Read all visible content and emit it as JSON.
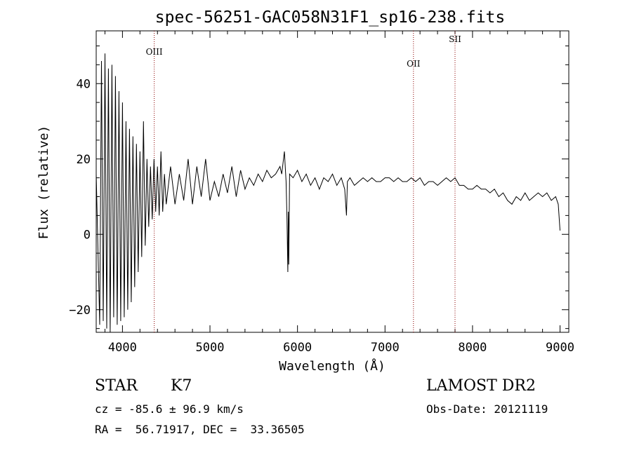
{
  "chart_data": {
    "type": "line",
    "title": "spec-56251-GAC058N31F1_sp16-238.fits",
    "xlabel": "Wavelength (Å)",
    "ylabel": "Flux (relative)",
    "xlim": [
      3700,
      9100
    ],
    "ylim": [
      -26,
      54
    ],
    "xticks": [
      "4000",
      "5000",
      "6000",
      "7000",
      "8000",
      "9000"
    ],
    "yticks": [
      "−20",
      "0",
      "20",
      "40"
    ],
    "grid": false,
    "lines": [
      {
        "label": "OIII",
        "x": 4363
      },
      {
        "label": "OII",
        "x": 7325
      },
      {
        "label": "SII",
        "x": 7800
      }
    ],
    "series": [
      {
        "x": [
          3700,
          3740,
          3760,
          3780,
          3800,
          3820,
          3840,
          3860,
          3880,
          3900,
          3920,
          3940,
          3960,
          3980,
          4000,
          4020,
          4040,
          4060,
          4080,
          4100,
          4120,
          4140,
          4160,
          4180,
          4200,
          4220,
          4240,
          4260,
          4280,
          4300,
          4320,
          4340,
          4360,
          4380,
          4400,
          4420,
          4440,
          4460,
          4480,
          4500,
          4550,
          4600,
          4650,
          4700,
          4750,
          4800,
          4850,
          4900,
          4950,
          5000,
          5050,
          5100,
          5150,
          5200,
          5250,
          5300,
          5350,
          5400,
          5450,
          5500,
          5550,
          5600,
          5650,
          5700,
          5750,
          5800,
          5820,
          5850,
          5870,
          5880,
          5890,
          5895,
          5900,
          5910,
          5950,
          6000,
          6050,
          6100,
          6150,
          6200,
          6250,
          6300,
          6350,
          6400,
          6450,
          6500,
          6540,
          6560,
          6570,
          6600,
          6650,
          6700,
          6750,
          6800,
          6850,
          6900,
          6950,
          7000,
          7050,
          7100,
          7150,
          7200,
          7250,
          7300,
          7350,
          7400,
          7450,
          7500,
          7550,
          7600,
          7650,
          7700,
          7750,
          7800,
          7850,
          7900,
          7950,
          8000,
          8050,
          8100,
          8150,
          8200,
          8250,
          8300,
          8350,
          8400,
          8450,
          8500,
          8550,
          8600,
          8650,
          8700,
          8750,
          8800,
          8850,
          8900,
          8950,
          8980,
          9000
        ],
        "y": [
          16,
          -24,
          46,
          -23,
          48,
          -25,
          44,
          -26,
          45,
          -22,
          42,
          -24,
          38,
          -23,
          35,
          -22,
          30,
          -20,
          28,
          -18,
          26,
          -14,
          24,
          -10,
          22,
          -6,
          30,
          -3,
          20,
          2,
          18,
          4,
          20,
          6,
          18,
          5,
          22,
          6,
          16,
          8,
          18,
          8,
          16,
          9,
          20,
          8,
          18,
          10,
          20,
          9,
          14,
          10,
          16,
          11,
          18,
          10,
          17,
          12,
          15,
          13,
          16,
          14,
          17,
          15,
          16,
          18,
          16,
          22,
          14,
          4,
          -10,
          6,
          -8,
          16,
          15,
          17,
          14,
          16,
          13,
          15,
          12,
          15,
          14,
          16,
          13,
          15,
          12,
          5,
          14,
          15,
          13,
          14,
          15,
          14,
          15,
          14,
          14,
          15,
          15,
          14,
          15,
          14,
          14,
          15,
          14,
          15,
          13,
          14,
          14,
          13,
          14,
          15,
          14,
          15,
          13,
          13,
          12,
          12,
          13,
          12,
          12,
          11,
          12,
          10,
          11,
          9,
          8,
          10,
          9,
          11,
          9,
          10,
          11,
          10,
          11,
          9,
          10,
          8,
          1
        ]
      }
    ]
  },
  "info": {
    "class_label": "STAR",
    "subclass": "K7",
    "survey": "LAMOST DR2",
    "cz": "cz = -85.6 ± 96.9 km/s",
    "obs_date": "Obs-Date: 20121119",
    "radec": "RA =  56.71917, DEC =  33.36505"
  }
}
